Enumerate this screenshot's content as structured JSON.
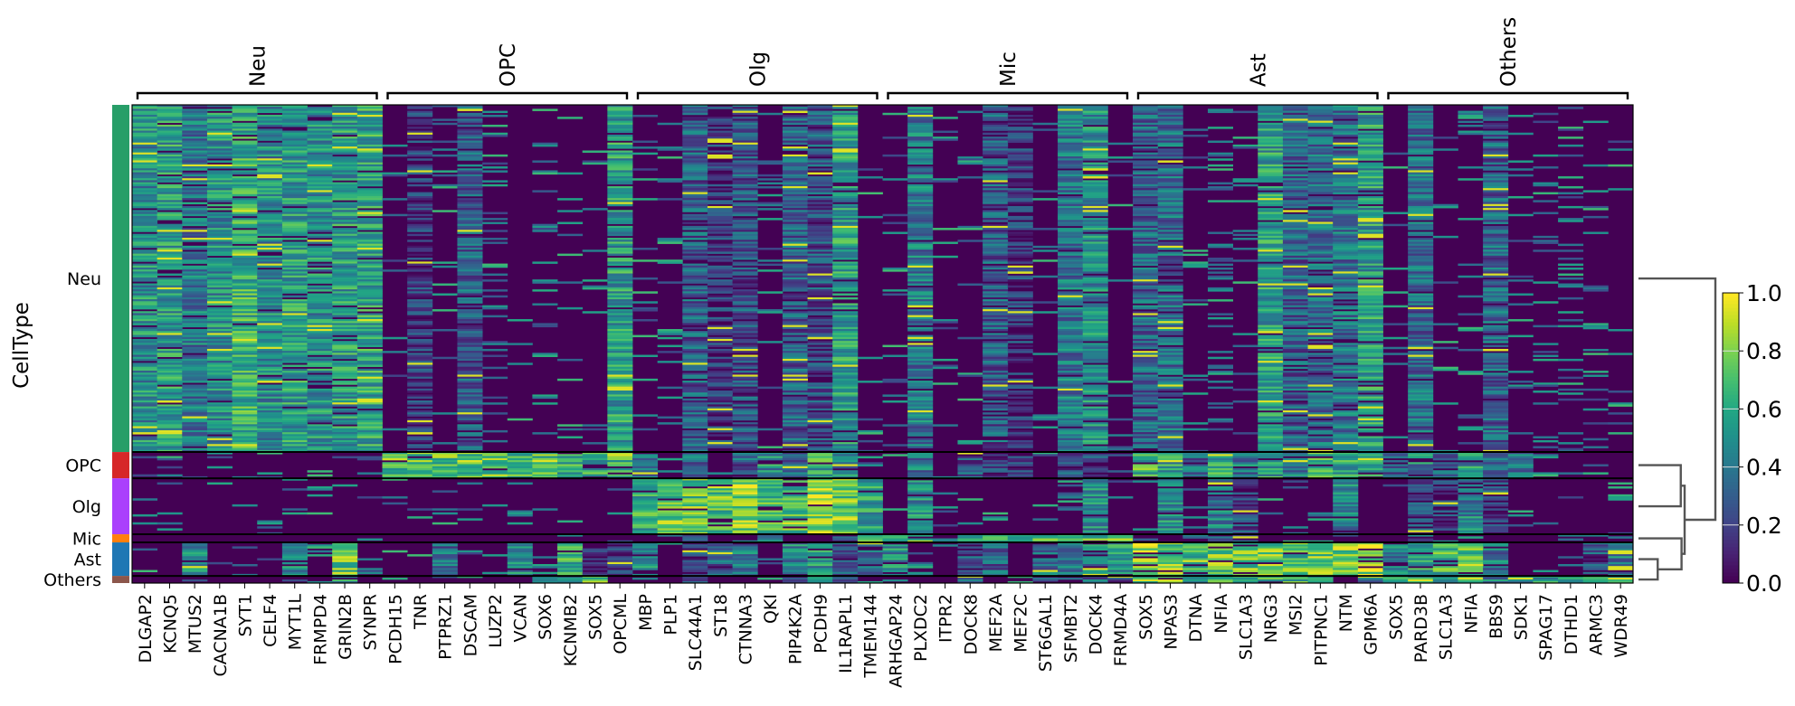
{
  "chart_data": {
    "type": "heatmap",
    "title": "",
    "ylabel": "CellType",
    "xlabel": "",
    "colormap": "viridis",
    "colorbar": {
      "vmin": 0.0,
      "vmax": 1.0,
      "ticks": [
        "0.0",
        "0.2",
        "0.4",
        "0.6",
        "0.8",
        "1.0"
      ]
    },
    "gene_groups": [
      {
        "name": "Neu",
        "genes": [
          "DLGAP2",
          "KCNQ5",
          "MTUS2",
          "CACNA1B",
          "SYT1",
          "CELF4",
          "MYT1L",
          "FRMPD4",
          "GRIN2B",
          "SYNPR"
        ]
      },
      {
        "name": "OPC",
        "genes": [
          "PCDH15",
          "TNR",
          "PTPRZ1",
          "DSCAM",
          "LUZP2",
          "VCAN",
          "SOX6",
          "KCNMB2",
          "SOX5",
          "OPCML"
        ]
      },
      {
        "name": "Olg",
        "genes": [
          "MBP",
          "PLP1",
          "SLC44A1",
          "ST18",
          "CTNNA3",
          "QKI",
          "PIP4K2A",
          "PCDH9",
          "IL1RAPL1",
          "TMEM144"
        ]
      },
      {
        "name": "Mic",
        "genes": [
          "ARHGAP24",
          "PLXDC2",
          "ITPR2",
          "DOCK8",
          "MEF2A",
          "MEF2C",
          "ST6GAL1",
          "SFMBT2",
          "DOCK4",
          "FRMD4A"
        ]
      },
      {
        "name": "Ast",
        "genes": [
          "SOX5",
          "NPAS3",
          "DTNA",
          "NFIA",
          "SLC1A3",
          "NRG3",
          "MSI2",
          "PITPNC1",
          "NTM",
          "GPM6A"
        ]
      },
      {
        "name": "Others",
        "genes": [
          "SOX5",
          "PARD3B",
          "SLC1A3",
          "NFIA",
          "BBS9",
          "SDK1",
          "SPAG17",
          "DTHD1",
          "ARMC3",
          "WDR49"
        ]
      }
    ],
    "cell_types": [
      {
        "name": "Neu",
        "color": "#279e68",
        "fraction": 0.726
      },
      {
        "name": "OPC",
        "color": "#d62728",
        "fraction": 0.055
      },
      {
        "name": "Olg",
        "color": "#aa40fc",
        "fraction": 0.117
      },
      {
        "name": "Mic",
        "color": "#ff7f0e",
        "fraction": 0.017
      },
      {
        "name": "Ast",
        "color": "#1f77b4",
        "fraction": 0.07
      },
      {
        "name": "Others",
        "color": "#8c564b",
        "fraction": 0.015
      }
    ],
    "mean_expression": {
      "Neu": [
        0.5,
        0.55,
        0.4,
        0.5,
        0.62,
        0.48,
        0.55,
        0.5,
        0.55,
        0.58,
        0.05,
        0.15,
        0.05,
        0.3,
        0.12,
        0.02,
        0.1,
        0.08,
        0.05,
        0.55,
        0.05,
        0.05,
        0.3,
        0.15,
        0.25,
        0.1,
        0.3,
        0.25,
        0.55,
        0.05,
        0.05,
        0.4,
        0.05,
        0.05,
        0.28,
        0.15,
        0.05,
        0.4,
        0.48,
        0.05,
        0.32,
        0.35,
        0.08,
        0.12,
        0.05,
        0.55,
        0.3,
        0.35,
        0.38,
        0.55,
        0.05,
        0.35,
        0.05,
        0.1,
        0.32,
        0.05,
        0.1,
        0.1,
        0.12,
        0.05
      ],
      "OPC": [
        0.05,
        0.12,
        0.05,
        0.08,
        0.1,
        0.05,
        0.1,
        0.08,
        0.08,
        0.05,
        0.72,
        0.68,
        0.7,
        0.72,
        0.7,
        0.62,
        0.68,
        0.62,
        0.6,
        0.68,
        0.35,
        0.1,
        0.35,
        0.05,
        0.3,
        0.5,
        0.3,
        0.6,
        0.45,
        0.05,
        0.05,
        0.4,
        0.05,
        0.25,
        0.2,
        0.15,
        0.05,
        0.28,
        0.2,
        0.08,
        0.65,
        0.55,
        0.35,
        0.6,
        0.4,
        0.55,
        0.4,
        0.62,
        0.58,
        0.62,
        0.3,
        0.45,
        0.3,
        0.5,
        0.32,
        0.35,
        0.05,
        0.05,
        0.05,
        0.05
      ],
      "Olg": [
        0.05,
        0.05,
        0.05,
        0.05,
        0.05,
        0.05,
        0.05,
        0.05,
        0.05,
        0.05,
        0.05,
        0.05,
        0.05,
        0.05,
        0.05,
        0.05,
        0.05,
        0.05,
        0.05,
        0.05,
        0.62,
        0.75,
        0.72,
        0.7,
        0.8,
        0.7,
        0.7,
        0.82,
        0.78,
        0.55,
        0.05,
        0.48,
        0.05,
        0.05,
        0.1,
        0.05,
        0.05,
        0.1,
        0.45,
        0.05,
        0.05,
        0.48,
        0.05,
        0.42,
        0.2,
        0.05,
        0.12,
        0.05,
        0.45,
        0.05,
        0.05,
        0.2,
        0.15,
        0.45,
        0.2,
        0.05,
        0.05,
        0.05,
        0.05,
        0.05
      ],
      "Mic": [
        0.05,
        0.05,
        0.05,
        0.05,
        0.05,
        0.05,
        0.05,
        0.05,
        0.05,
        0.05,
        0.05,
        0.05,
        0.05,
        0.05,
        0.05,
        0.05,
        0.05,
        0.05,
        0.05,
        0.05,
        0.05,
        0.05,
        0.2,
        0.05,
        0.05,
        0.5,
        0.05,
        0.05,
        0.05,
        0.65,
        0.72,
        0.7,
        0.62,
        0.68,
        0.7,
        0.72,
        0.65,
        0.68,
        0.7,
        0.72,
        0.05,
        0.05,
        0.1,
        0.25,
        0.2,
        0.05,
        0.05,
        0.1,
        0.05,
        0.05,
        0.05,
        0.35,
        0.1,
        0.05,
        0.05,
        0.05,
        0.05,
        0.05,
        0.05,
        0.05
      ],
      "Ast": [
        0.05,
        0.08,
        0.5,
        0.05,
        0.1,
        0.08,
        0.45,
        0.1,
        0.75,
        0.12,
        0.05,
        0.05,
        0.35,
        0.05,
        0.05,
        0.5,
        0.12,
        0.62,
        0.15,
        0.2,
        0.45,
        0.1,
        0.2,
        0.35,
        0.4,
        0.1,
        0.45,
        0.5,
        0.25,
        0.4,
        0.5,
        0.1,
        0.05,
        0.25,
        0.3,
        0.05,
        0.35,
        0.4,
        0.45,
        0.55,
        0.82,
        0.75,
        0.65,
        0.72,
        0.75,
        0.72,
        0.7,
        0.75,
        0.8,
        0.82,
        0.45,
        0.55,
        0.65,
        0.7,
        0.4,
        0.05,
        0.05,
        0.05,
        0.25,
        0.4
      ],
      "Others": [
        0.05,
        0.1,
        0.05,
        0.05,
        0.05,
        0.1,
        0.1,
        0.1,
        0.5,
        0.05,
        0.05,
        0.05,
        0.05,
        0.05,
        0.05,
        0.05,
        0.4,
        0.45,
        0.7,
        0.1,
        0.05,
        0.05,
        0.3,
        0.05,
        0.05,
        0.05,
        0.25,
        0.55,
        0.3,
        0.1,
        0.05,
        0.05,
        0.05,
        0.3,
        0.05,
        0.05,
        0.2,
        0.05,
        0.35,
        0.15,
        0.7,
        0.65,
        0.6,
        0.62,
        0.6,
        0.6,
        0.65,
        0.58,
        0.05,
        0.4,
        0.65,
        0.55,
        0.6,
        0.55,
        0.45,
        0.55,
        0.55,
        0.55,
        0.55,
        0.6
      ]
    },
    "dendrogram": {
      "leaf_order": [
        "Neu",
        "OPC",
        "Olg",
        "Mic",
        "Ast",
        "Others"
      ],
      "merges": [
        {
          "children": [
            "Ast",
            "Others"
          ],
          "height": 0.25
        },
        {
          "children": [
            "OPC",
            "Olg"
          ],
          "height": 0.55
        },
        {
          "children": [
            "Mic",
            "Ast+Others"
          ],
          "height": 0.56
        },
        {
          "children": [
            "OPC+Olg",
            "Mic+Ast+Others"
          ],
          "height": 0.6
        },
        {
          "children": [
            "Neu",
            "rest"
          ],
          "height": 1.0
        }
      ]
    }
  }
}
